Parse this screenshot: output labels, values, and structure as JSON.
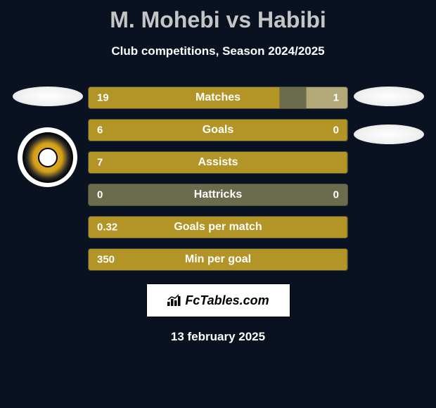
{
  "title": "M. Mohebi vs Habibi",
  "subtitle": "Club competitions, Season 2024/2025",
  "colors": {
    "background": "#0a1221",
    "bar_base": "#6b6b4d",
    "bar_left": "#b39426",
    "bar_right": "#b3a978",
    "text_primary": "#ffffff",
    "title_color": "#c5c5c5"
  },
  "stats": [
    {
      "label": "Matches",
      "left_value": "19",
      "right_value": "1",
      "left_pct": 74,
      "right_pct": 16
    },
    {
      "label": "Goals",
      "left_value": "6",
      "right_value": "0",
      "left_pct": 100,
      "right_pct": 0
    },
    {
      "label": "Assists",
      "left_value": "7",
      "right_value": "",
      "left_pct": 100,
      "right_pct": 0
    },
    {
      "label": "Hattricks",
      "left_value": "0",
      "right_value": "0",
      "left_pct": 0,
      "right_pct": 0
    },
    {
      "label": "Goals per match",
      "left_value": "0.32",
      "right_value": "",
      "left_pct": 100,
      "right_pct": 0
    },
    {
      "label": "Min per goal",
      "left_value": "350",
      "right_value": "",
      "left_pct": 100,
      "right_pct": 0
    }
  ],
  "brand": "FcTables.com",
  "date": "13 february 2025"
}
